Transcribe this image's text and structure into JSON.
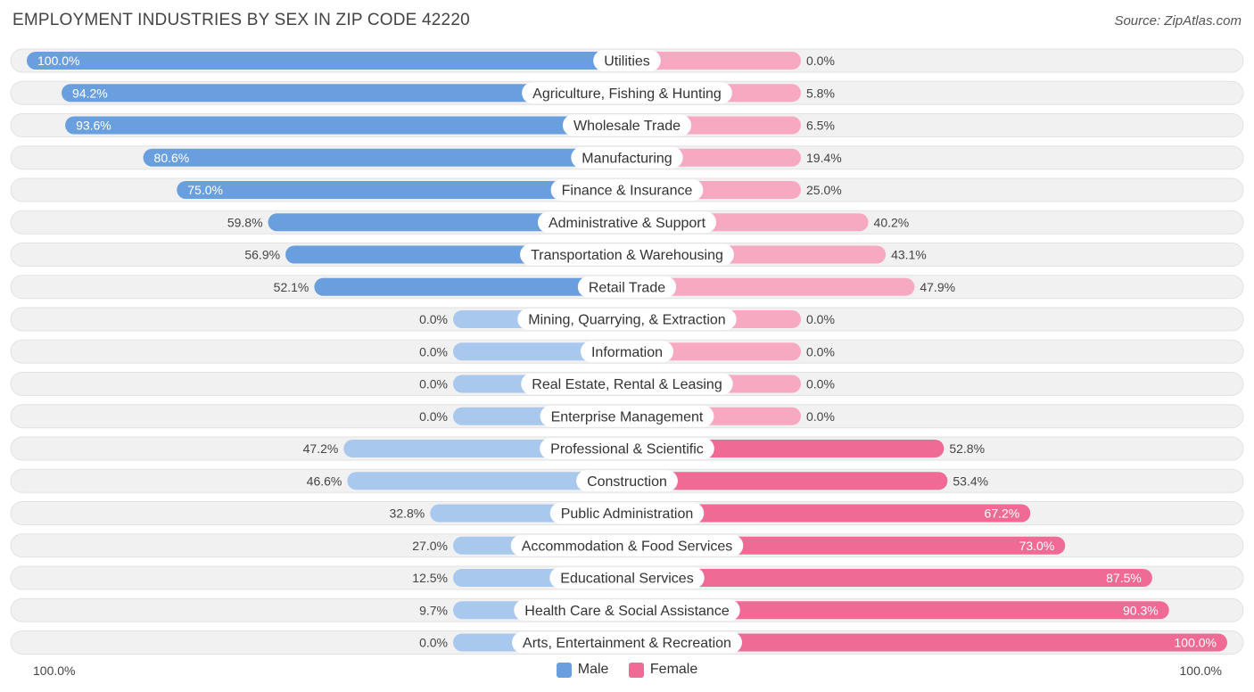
{
  "chart_data": {
    "type": "bar",
    "title": "EMPLOYMENT INDUSTRIES BY SEX IN ZIP CODE 42220",
    "source": "Source: ZipAtlas.com",
    "categories": [
      "Utilities",
      "Agriculture, Fishing & Hunting",
      "Wholesale Trade",
      "Manufacturing",
      "Finance & Insurance",
      "Administrative & Support",
      "Transportation & Warehousing",
      "Retail Trade",
      "Mining, Quarrying, & Extraction",
      "Information",
      "Real Estate, Rental & Leasing",
      "Enterprise Management",
      "Professional & Scientific",
      "Construction",
      "Public Administration",
      "Accommodation & Food Services",
      "Educational Services",
      "Health Care & Social Assistance",
      "Arts, Entertainment & Recreation"
    ],
    "series": [
      {
        "name": "Male",
        "values": [
          100.0,
          94.2,
          93.6,
          80.6,
          75.0,
          59.8,
          56.9,
          52.1,
          0.0,
          0.0,
          0.0,
          0.0,
          47.2,
          46.6,
          32.8,
          27.0,
          12.5,
          9.7,
          0.0
        ],
        "labels": [
          "100.0%",
          "94.2%",
          "93.6%",
          "80.6%",
          "75.0%",
          "59.8%",
          "56.9%",
          "52.1%",
          "0.0%",
          "0.0%",
          "0.0%",
          "0.0%",
          "47.2%",
          "46.6%",
          "32.8%",
          "27.0%",
          "12.5%",
          "9.7%",
          "0.0%"
        ]
      },
      {
        "name": "Female",
        "values": [
          0.0,
          5.8,
          6.5,
          19.4,
          25.0,
          40.2,
          43.1,
          47.9,
          0.0,
          0.0,
          0.0,
          0.0,
          52.8,
          53.4,
          67.2,
          73.0,
          87.5,
          90.3,
          100.0
        ],
        "labels": [
          "0.0%",
          "5.8%",
          "6.5%",
          "19.4%",
          "25.0%",
          "40.2%",
          "43.1%",
          "47.9%",
          "0.0%",
          "0.0%",
          "0.0%",
          "0.0%",
          "52.8%",
          "53.4%",
          "67.2%",
          "73.0%",
          "87.5%",
          "90.3%",
          "100.0%"
        ]
      }
    ],
    "axis": {
      "left_label": "100.0%",
      "right_label": "100.0%",
      "range": [
        0,
        100
      ]
    },
    "legend": [
      {
        "name": "Male",
        "color": "#6a9fdf"
      },
      {
        "name": "Female",
        "color": "#f06a96"
      }
    ],
    "colors": {
      "male_strong": "#6a9fdf",
      "male_light": "#a9c8ee",
      "female_strong": "#f06a96",
      "female_light": "#f7a9c1",
      "row_bg": "#f1f1f1",
      "row_border": "#e2e2e2"
    }
  }
}
